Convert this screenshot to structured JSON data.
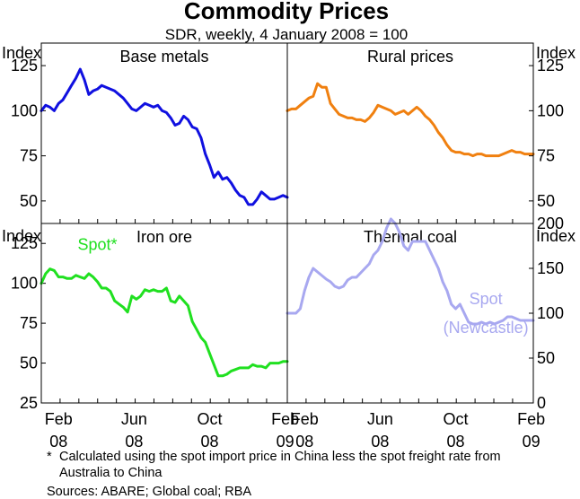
{
  "figure": {
    "title": "Commodity Prices",
    "subtitle": "SDR, weekly, 4 January 2008 = 100",
    "left_unit": "Index",
    "right_unit": "Index"
  },
  "x_ticks": [
    {
      "month": "Feb",
      "year": "08",
      "week": 4
    },
    {
      "month": "Jun",
      "year": "08",
      "week": 21.5
    },
    {
      "month": "Oct",
      "year": "08",
      "week": 39
    },
    {
      "month": "Feb",
      "year": "09",
      "week": 56.5
    }
  ],
  "footnotes": {
    "note_marker": "*",
    "note_text": "Calculated using the spot import price in China less the spot freight rate from Australia to China",
    "sources": "Sources: ABARE; Global coal; RBA"
  },
  "chart_data": [
    {
      "type": "line",
      "title": "Base metals",
      "axis": "left",
      "ylim": [
        37.5,
        137.5
      ],
      "yticks": [
        50,
        75,
        100,
        125
      ],
      "series": [
        {
          "name": "Base metals",
          "color": "#1010e0",
          "x": [
            0,
            1,
            2,
            3,
            4,
            5,
            6,
            7,
            8,
            9,
            10,
            11,
            12,
            13,
            14,
            15,
            16,
            17,
            18,
            19,
            20,
            21,
            22,
            23,
            24,
            25,
            26,
            27,
            28,
            29,
            30,
            31,
            32,
            33,
            34,
            35,
            36,
            37,
            38,
            39,
            40,
            41,
            42,
            43,
            44,
            45,
            46,
            47,
            48,
            49,
            50,
            51,
            52,
            53,
            54,
            55,
            56,
            57
          ],
          "values": [
            100,
            103,
            102,
            100,
            104,
            106,
            110,
            114,
            118,
            123,
            117,
            109,
            111,
            112,
            114,
            113,
            112,
            111,
            109,
            107,
            104,
            101,
            100,
            102,
            104,
            103,
            102,
            103,
            100,
            99,
            96,
            92,
            93,
            97,
            95,
            91,
            90,
            85,
            76,
            70,
            63,
            66,
            62,
            63,
            60,
            56,
            53,
            52,
            48,
            48,
            51,
            55,
            53,
            51,
            51,
            52,
            53,
            52
          ]
        }
      ],
      "annotations": []
    },
    {
      "type": "line",
      "title": "Rural prices",
      "axis": "right",
      "ylim": [
        37.5,
        137.5
      ],
      "yticks": [
        50,
        75,
        100,
        125
      ],
      "series": [
        {
          "name": "Rural prices",
          "color": "#f08010",
          "x": [
            0,
            1,
            2,
            3,
            4,
            5,
            6,
            7,
            8,
            9,
            10,
            11,
            12,
            13,
            14,
            15,
            16,
            17,
            18,
            19,
            20,
            21,
            22,
            23,
            24,
            25,
            26,
            27,
            28,
            29,
            30,
            31,
            32,
            33,
            34,
            35,
            36,
            37,
            38,
            39,
            40,
            41,
            42,
            43,
            44,
            45,
            46,
            47,
            48,
            49,
            50,
            51,
            52,
            53,
            54,
            55,
            56,
            57
          ],
          "values": [
            100,
            101,
            101,
            103,
            105,
            107,
            108,
            115,
            113,
            113,
            104,
            101,
            98,
            97,
            96,
            96,
            95,
            95,
            94,
            96,
            99,
            103,
            102,
            101,
            100,
            98,
            99,
            100,
            98,
            100,
            102,
            100,
            97,
            95,
            92,
            88,
            85,
            81,
            78,
            77,
            77,
            76,
            76,
            75,
            76,
            76,
            75,
            75,
            75,
            75,
            76,
            77,
            78,
            77,
            77,
            76,
            76,
            76
          ]
        }
      ],
      "annotations": []
    },
    {
      "type": "line",
      "title": "Iron ore",
      "axis": "left",
      "ylim": [
        25,
        137.5
      ],
      "yticks": [
        25,
        50,
        75,
        100,
        125
      ],
      "series": [
        {
          "name": "Spot*",
          "color": "#20e020",
          "x": [
            0,
            1,
            2,
            3,
            4,
            5,
            6,
            7,
            8,
            9,
            10,
            11,
            12,
            13,
            14,
            15,
            16,
            17,
            18,
            19,
            20,
            21,
            22,
            23,
            24,
            25,
            26,
            27,
            28,
            29,
            30,
            31,
            32,
            33,
            34,
            35,
            36,
            37,
            38,
            39,
            40,
            41,
            42,
            43,
            44,
            45,
            46,
            47,
            48,
            49,
            50,
            51,
            52,
            53,
            54,
            55,
            56,
            57
          ],
          "values": [
            100,
            106,
            109,
            108,
            104,
            104,
            103,
            103,
            105,
            104,
            103,
            106,
            104,
            101,
            97,
            97,
            95,
            89,
            87,
            85,
            82,
            92,
            90,
            92,
            96,
            95,
            96,
            95,
            95,
            97,
            89,
            88,
            92,
            89,
            86,
            76,
            71,
            66,
            63,
            56,
            49,
            42,
            42,
            43,
            45,
            46,
            47,
            47,
            47,
            49,
            48,
            48,
            47,
            50,
            50,
            50,
            51,
            51
          ]
        }
      ],
      "annotations": [
        {
          "text": "Spot*",
          "color": "#20e020",
          "week": 13,
          "value": 121
        }
      ]
    },
    {
      "type": "line",
      "title": "Thermal coal",
      "axis": "right",
      "ylim": [
        0,
        200
      ],
      "yticks": [
        0,
        50,
        100,
        150,
        200
      ],
      "series": [
        {
          "name": "Spot (Newcastle)",
          "color": "#a8a8f0",
          "x": [
            0,
            1,
            2,
            3,
            4,
            5,
            6,
            7,
            8,
            9,
            10,
            11,
            12,
            13,
            14,
            15,
            16,
            17,
            18,
            19,
            20,
            21,
            22,
            23,
            24,
            25,
            26,
            27,
            28,
            29,
            30,
            31,
            32,
            33,
            34,
            35,
            36,
            37,
            38,
            39,
            40,
            41,
            42,
            43,
            44,
            45,
            46,
            47,
            48,
            49,
            50,
            51,
            52,
            53,
            54,
            55,
            56,
            57
          ],
          "values": [
            100,
            100,
            100,
            105,
            125,
            140,
            150,
            146,
            142,
            138,
            135,
            130,
            128,
            130,
            137,
            140,
            140,
            145,
            150,
            155,
            165,
            170,
            180,
            195,
            205,
            200,
            190,
            175,
            170,
            180,
            180,
            180,
            180,
            170,
            160,
            150,
            135,
            125,
            110,
            105,
            110,
            100,
            90,
            88,
            88,
            90,
            88,
            90,
            88,
            90,
            92,
            96,
            96,
            94,
            92,
            92,
            92,
            92
          ]
        }
      ],
      "annotations": [
        {
          "text": "Spot",
          "color": "#a8a8f0",
          "week": 46,
          "value": 110
        },
        {
          "text": "(Newcastle)",
          "color": "#a8a8f0",
          "week": 46,
          "value": 78
        }
      ]
    }
  ]
}
